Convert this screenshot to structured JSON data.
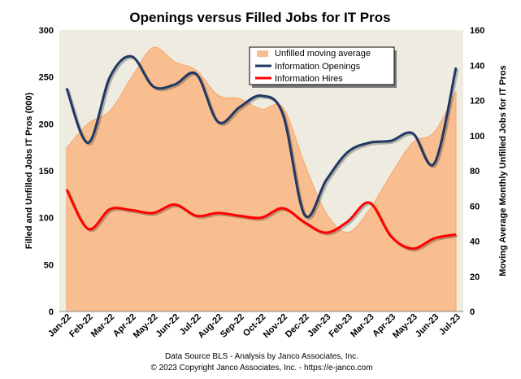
{
  "chart_data": {
    "type": "line",
    "title": "Openings versus Filled Jobs for IT Pros",
    "ylabel": "Filled and Unfilled Jobs IT Pros (000)",
    "y2label": "Moving Average Monthly Unfilled Jobs for IT Pros",
    "categories": [
      "Jan-22",
      "Feb-22",
      "Mar-22",
      "Apr-22",
      "May-22",
      "Jun-22",
      "Jul-22",
      "Aug-22",
      "Sep-22",
      "Oct-22",
      "Nov-22",
      "Dec-22",
      "Jan-23",
      "Feb-23",
      "Mar-23",
      "Apr-23",
      "May-23",
      "Jun-23",
      "Jul-23"
    ],
    "ylim": [
      0,
      300
    ],
    "y2lim": [
      0,
      160
    ],
    "yticks": [
      "0",
      "50",
      "100",
      "150",
      "200",
      "250",
      "300"
    ],
    "y2ticks": [
      "0",
      "20",
      "40",
      "60",
      "80",
      "100",
      "120",
      "140",
      "160"
    ],
    "series": [
      {
        "name": "Unfilled moving average",
        "axis": "y2",
        "kind": "area",
        "color": "#F9BE8F",
        "values": [
          93,
          107,
          114,
          133,
          150,
          142,
          137,
          123,
          121,
          115,
          116,
          84,
          56,
          45,
          58,
          78,
          96,
          102,
          125
        ]
      },
      {
        "name": "Information Openings",
        "axis": "y",
        "kind": "line",
        "color": "#1F3864",
        "values": [
          238,
          180,
          250,
          272,
          240,
          242,
          253,
          202,
          218,
          230,
          210,
          103,
          140,
          170,
          180,
          182,
          190,
          158,
          260
        ]
      },
      {
        "name": "Information Hires",
        "axis": "y",
        "kind": "line",
        "color": "#FF0000",
        "values": [
          130,
          88,
          109,
          108,
          105,
          114,
          102,
          105,
          102,
          100,
          110,
          95,
          84,
          96,
          116,
          80,
          67,
          78,
          82
        ]
      }
    ],
    "legend_position": "top-center",
    "background_band_color": "#EEEBE0"
  },
  "footer": {
    "line1": "Data Source BLS - Analysis by Janco Associates, Inc.",
    "line2": "© 2023 Copyright Janco Associates, Inc. - https://e-janco.com"
  }
}
